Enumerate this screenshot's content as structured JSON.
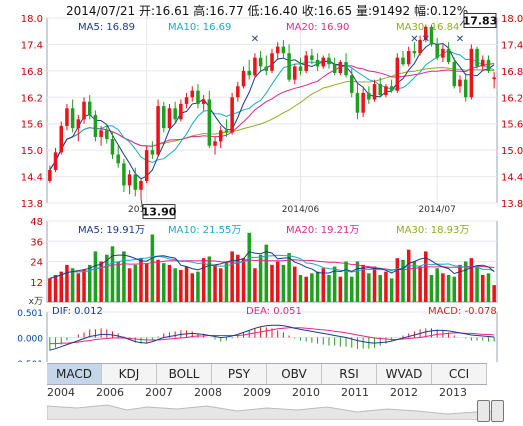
{
  "header": {
    "date": "2014/07/21",
    "open_label": "开:",
    "open": "16.61",
    "high_label": "高:",
    "high": "16.77",
    "low_label": "低:",
    "low": "16.40",
    "close_label": "收:",
    "close": "16.65",
    "volume_label": "量:",
    "volume": "91492",
    "change_label": "幅:",
    "change": "0.12%"
  },
  "colors": {
    "up": "#e8141a",
    "down": "#1e9f1e",
    "ma5": "#1b3a8a",
    "ma10": "#19a8c8",
    "ma20": "#e0288a",
    "ma30": "#8cae1c"
  },
  "tabs": [
    "MACD",
    "KDJ",
    "BOLL",
    "PSY",
    "OBV",
    "RSI",
    "WVAD",
    "CCI"
  ],
  "active_tab": "MACD",
  "timeline": {
    "years": [
      "2004",
      "2006",
      "2007",
      "2008",
      "2009",
      "2010",
      "2011",
      "2012",
      "2013"
    ]
  },
  "chart_data": [
    {
      "type": "candlestick",
      "ma_legend": [
        {
          "name": "MA5",
          "value": "16.89"
        },
        {
          "name": "MA10",
          "value": "16.69"
        },
        {
          "name": "MA20",
          "value": "16.90"
        },
        {
          "name": "MA30",
          "value": "16.84"
        }
      ],
      "y_ticks": [
        "18.0",
        "17.4",
        "16.8",
        "16.2",
        "15.6",
        "15.0",
        "14.4",
        "13.8"
      ],
      "ylim": [
        13.8,
        18.0
      ],
      "x_ticks": [
        {
          "label": "2014/05",
          "index": 17
        },
        {
          "label": "2014/06",
          "index": 44
        },
        {
          "label": "2014/07",
          "index": 68
        }
      ],
      "annotations": [
        {
          "label": "13.90",
          "index": 16,
          "value": 13.9
        },
        {
          "label": "17.83",
          "index": 72,
          "value": 17.83
        }
      ],
      "ohlc": [
        [
          14.3,
          14.65,
          14.25,
          14.55
        ],
        [
          14.55,
          15.05,
          14.5,
          14.95
        ],
        [
          14.95,
          15.65,
          14.9,
          15.55
        ],
        [
          15.55,
          16.05,
          15.45,
          15.95
        ],
        [
          15.95,
          16.15,
          15.4,
          15.5
        ],
        [
          15.5,
          15.8,
          15.2,
          15.7
        ],
        [
          15.7,
          16.2,
          15.6,
          16.1
        ],
        [
          16.1,
          16.25,
          15.7,
          15.8
        ],
        [
          15.8,
          15.9,
          15.2,
          15.3
        ],
        [
          15.3,
          15.55,
          15.1,
          15.45
        ],
        [
          15.45,
          15.6,
          15.15,
          15.25
        ],
        [
          15.25,
          15.4,
          14.8,
          14.9
        ],
        [
          14.9,
          15.1,
          14.6,
          14.7
        ],
        [
          14.7,
          14.8,
          14.05,
          14.2
        ],
        [
          14.2,
          14.55,
          14.0,
          14.45
        ],
        [
          14.45,
          14.6,
          13.95,
          14.1
        ],
        [
          14.1,
          14.35,
          13.9,
          14.3
        ],
        [
          14.3,
          15.1,
          14.25,
          15.0
        ],
        [
          15.0,
          15.2,
          14.8,
          14.9
        ],
        [
          14.9,
          16.15,
          14.85,
          16.0
        ],
        [
          16.0,
          16.1,
          15.4,
          15.5
        ],
        [
          15.5,
          16.05,
          15.45,
          15.95
        ],
        [
          15.95,
          16.1,
          15.6,
          15.7
        ],
        [
          15.7,
          16.15,
          15.65,
          16.05
        ],
        [
          16.05,
          16.3,
          15.95,
          16.2
        ],
        [
          16.2,
          16.45,
          16.1,
          16.35
        ],
        [
          16.35,
          16.5,
          15.95,
          16.05
        ],
        [
          16.05,
          16.25,
          15.9,
          16.15
        ],
        [
          16.15,
          16.35,
          15.05,
          15.1
        ],
        [
          15.1,
          15.3,
          14.9,
          15.2
        ],
        [
          15.2,
          15.55,
          15.05,
          15.45
        ],
        [
          15.45,
          15.7,
          15.3,
          15.4
        ],
        [
          15.4,
          16.3,
          15.35,
          16.2
        ],
        [
          16.2,
          16.55,
          16.1,
          16.45
        ],
        [
          16.45,
          16.9,
          16.4,
          16.8
        ],
        [
          16.8,
          17.05,
          16.6,
          16.7
        ],
        [
          16.7,
          17.2,
          16.65,
          17.1
        ],
        [
          17.1,
          17.25,
          16.8,
          16.9
        ],
        [
          16.9,
          17.15,
          16.7,
          16.8
        ],
        [
          16.8,
          17.3,
          16.75,
          17.2
        ],
        [
          17.2,
          17.45,
          17.05,
          17.35
        ],
        [
          17.35,
          17.5,
          17.1,
          17.2
        ],
        [
          17.2,
          17.4,
          16.55,
          16.6
        ],
        [
          16.6,
          16.95,
          16.5,
          16.9
        ],
        [
          16.9,
          17.1,
          16.7,
          16.8
        ],
        [
          16.8,
          17.25,
          16.75,
          17.15
        ],
        [
          17.15,
          17.3,
          16.95,
          17.05
        ],
        [
          17.05,
          17.2,
          16.8,
          16.9
        ],
        [
          16.9,
          17.15,
          16.85,
          17.1
        ],
        [
          17.1,
          17.2,
          16.85,
          16.95
        ],
        [
          16.95,
          17.1,
          16.7,
          16.75
        ],
        [
          16.75,
          17.05,
          16.7,
          17.0
        ],
        [
          17.0,
          17.2,
          16.65,
          16.7
        ],
        [
          16.7,
          16.85,
          16.2,
          16.3
        ],
        [
          16.3,
          16.5,
          15.7,
          15.85
        ],
        [
          15.85,
          16.4,
          15.75,
          16.3
        ],
        [
          16.3,
          16.45,
          16.05,
          16.15
        ],
        [
          16.15,
          16.6,
          16.1,
          16.5
        ],
        [
          16.5,
          16.65,
          16.2,
          16.25
        ],
        [
          16.25,
          16.5,
          16.2,
          16.45
        ],
        [
          16.45,
          16.6,
          16.3,
          16.35
        ],
        [
          16.35,
          17.2,
          16.3,
          17.1
        ],
        [
          17.1,
          17.25,
          16.9,
          16.95
        ],
        [
          16.95,
          17.35,
          16.9,
          17.25
        ],
        [
          17.25,
          17.45,
          17.1,
          17.2
        ],
        [
          17.2,
          17.6,
          17.15,
          17.5
        ],
        [
          17.5,
          17.85,
          17.45,
          17.8
        ],
        [
          17.8,
          17.85,
          17.35,
          17.4
        ],
        [
          17.4,
          17.55,
          17.05,
          17.1
        ],
        [
          17.1,
          17.4,
          17.0,
          17.3
        ],
        [
          17.3,
          17.45,
          16.95,
          17.0
        ],
        [
          17.0,
          17.1,
          16.4,
          16.45
        ],
        [
          16.45,
          16.7,
          16.3,
          16.6
        ],
        [
          16.6,
          16.75,
          16.1,
          16.2
        ],
        [
          16.2,
          17.4,
          16.15,
          17.3
        ],
        [
          17.3,
          17.35,
          16.85,
          16.9
        ],
        [
          16.9,
          17.15,
          16.8,
          17.05
        ],
        [
          17.05,
          17.15,
          16.75,
          16.8
        ],
        [
          16.61,
          16.77,
          16.4,
          16.65
        ]
      ]
    },
    {
      "type": "bar",
      "title": "volume",
      "ma_legend": [
        {
          "name": "MA5",
          "value": "19.91万"
        },
        {
          "name": "MA10",
          "value": "21.55万"
        },
        {
          "name": "MA20",
          "value": "19.21万"
        },
        {
          "name": "MA30",
          "value": "18.93万"
        }
      ],
      "y_ticks": [
        "48",
        "36",
        "24",
        "12"
      ],
      "unit": "x万",
      "ylim": [
        0,
        48
      ],
      "values": [
        14,
        16,
        18,
        22,
        20,
        17,
        19,
        22,
        30,
        24,
        28,
        33,
        24,
        30,
        20,
        22,
        26,
        23,
        40,
        25,
        23,
        22,
        20,
        19,
        21,
        17,
        18,
        26,
        27,
        22,
        20,
        24,
        30,
        28,
        26,
        41,
        20,
        28,
        34,
        22,
        24,
        22,
        29,
        21,
        16,
        15,
        17,
        18,
        20,
        16,
        21,
        15,
        24,
        15,
        24,
        22,
        17,
        21,
        16,
        18,
        14,
        26,
        25,
        31,
        24,
        21,
        30,
        16,
        20,
        17,
        16,
        15,
        22,
        24,
        26,
        21,
        16,
        17,
        10
      ]
    },
    {
      "type": "line",
      "title": "MACD",
      "legend": [
        {
          "name": "DIF",
          "value": "0.012"
        },
        {
          "name": "DEA",
          "value": "0.051"
        },
        {
          "name": "MACD",
          "value": "-0.078"
        }
      ],
      "y_ticks": [
        "0.501",
        "0.000",
        "-0.501"
      ],
      "ylim": [
        -0.501,
        0.501
      ],
      "dif": [
        -0.25,
        -0.22,
        -0.18,
        -0.14,
        -0.1,
        -0.06,
        -0.02,
        0.02,
        0.04,
        0.06,
        0.06,
        0.05,
        0.03,
        0.0,
        -0.04,
        -0.08,
        -0.1,
        -0.11,
        -0.08,
        -0.04,
        0.0,
        0.02,
        0.04,
        0.06,
        0.07,
        0.08,
        0.07,
        0.06,
        0.04,
        0.02,
        0.0,
        0.01,
        0.03,
        0.06,
        0.1,
        0.14,
        0.18,
        0.21,
        0.23,
        0.24,
        0.24,
        0.23,
        0.21,
        0.18,
        0.16,
        0.14,
        0.12,
        0.1,
        0.08,
        0.06,
        0.04,
        0.02,
        0.0,
        -0.03,
        -0.06,
        -0.08,
        -0.1,
        -0.11,
        -0.1,
        -0.09,
        -0.07,
        -0.04,
        -0.01,
        0.02,
        0.05,
        0.08,
        0.11,
        0.13,
        0.14,
        0.14,
        0.13,
        0.11,
        0.09,
        0.07,
        0.05,
        0.04,
        0.03,
        0.02,
        0.01
      ],
      "dea": [
        -0.12,
        -0.12,
        -0.11,
        -0.11,
        -0.1,
        -0.09,
        -0.07,
        -0.06,
        -0.04,
        -0.03,
        -0.02,
        -0.01,
        -0.01,
        -0.01,
        -0.02,
        -0.03,
        -0.04,
        -0.05,
        -0.05,
        -0.05,
        -0.04,
        -0.03,
        -0.02,
        -0.01,
        0.0,
        0.02,
        0.03,
        0.03,
        0.04,
        0.04,
        0.04,
        0.04,
        0.04,
        0.04,
        0.05,
        0.07,
        0.09,
        0.11,
        0.13,
        0.15,
        0.17,
        0.18,
        0.19,
        0.19,
        0.19,
        0.18,
        0.17,
        0.16,
        0.15,
        0.14,
        0.12,
        0.11,
        0.09,
        0.07,
        0.05,
        0.03,
        0.01,
        -0.01,
        -0.02,
        -0.03,
        -0.04,
        -0.04,
        -0.03,
        -0.02,
        -0.01,
        0.0,
        0.02,
        0.04,
        0.06,
        0.07,
        0.08,
        0.09,
        0.09,
        0.08,
        0.08,
        0.07,
        0.06,
        0.06,
        0.05
      ]
    }
  ]
}
